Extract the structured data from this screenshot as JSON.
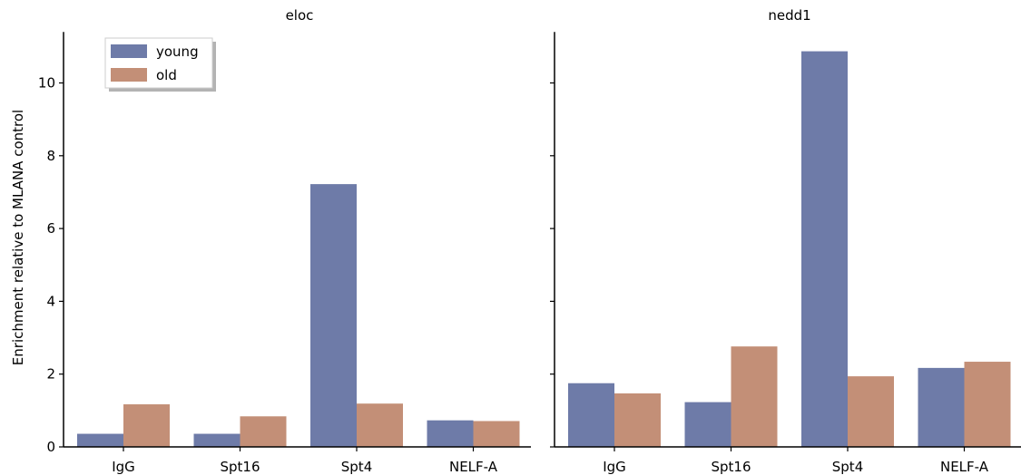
{
  "chart_data": {
    "type": "bar",
    "ylabel": "Enrichment relative to MLANA control",
    "ylim": [
      0,
      11.4
    ],
    "yticks": [
      0,
      2,
      4,
      6,
      8,
      10
    ],
    "categories": [
      "IgG",
      "Spt16",
      "Spt4",
      "NELF-A"
    ],
    "colors": {
      "young": "#6e7ba8",
      "old": "#c38f77"
    },
    "legend": {
      "placement": "top-left",
      "entries": [
        "young",
        "old"
      ]
    },
    "panels": [
      {
        "title": "eloc",
        "series": [
          {
            "name": "young",
            "values": [
              0.36,
              0.36,
              7.22,
              0.73
            ]
          },
          {
            "name": "old",
            "values": [
              1.17,
              0.84,
              1.19,
              0.71
            ]
          }
        ]
      },
      {
        "title": "nedd1",
        "series": [
          {
            "name": "young",
            "values": [
              1.75,
              1.23,
              10.87,
              2.17
            ]
          },
          {
            "name": "old",
            "values": [
              1.47,
              2.76,
              1.94,
              2.34
            ]
          }
        ]
      }
    ]
  }
}
